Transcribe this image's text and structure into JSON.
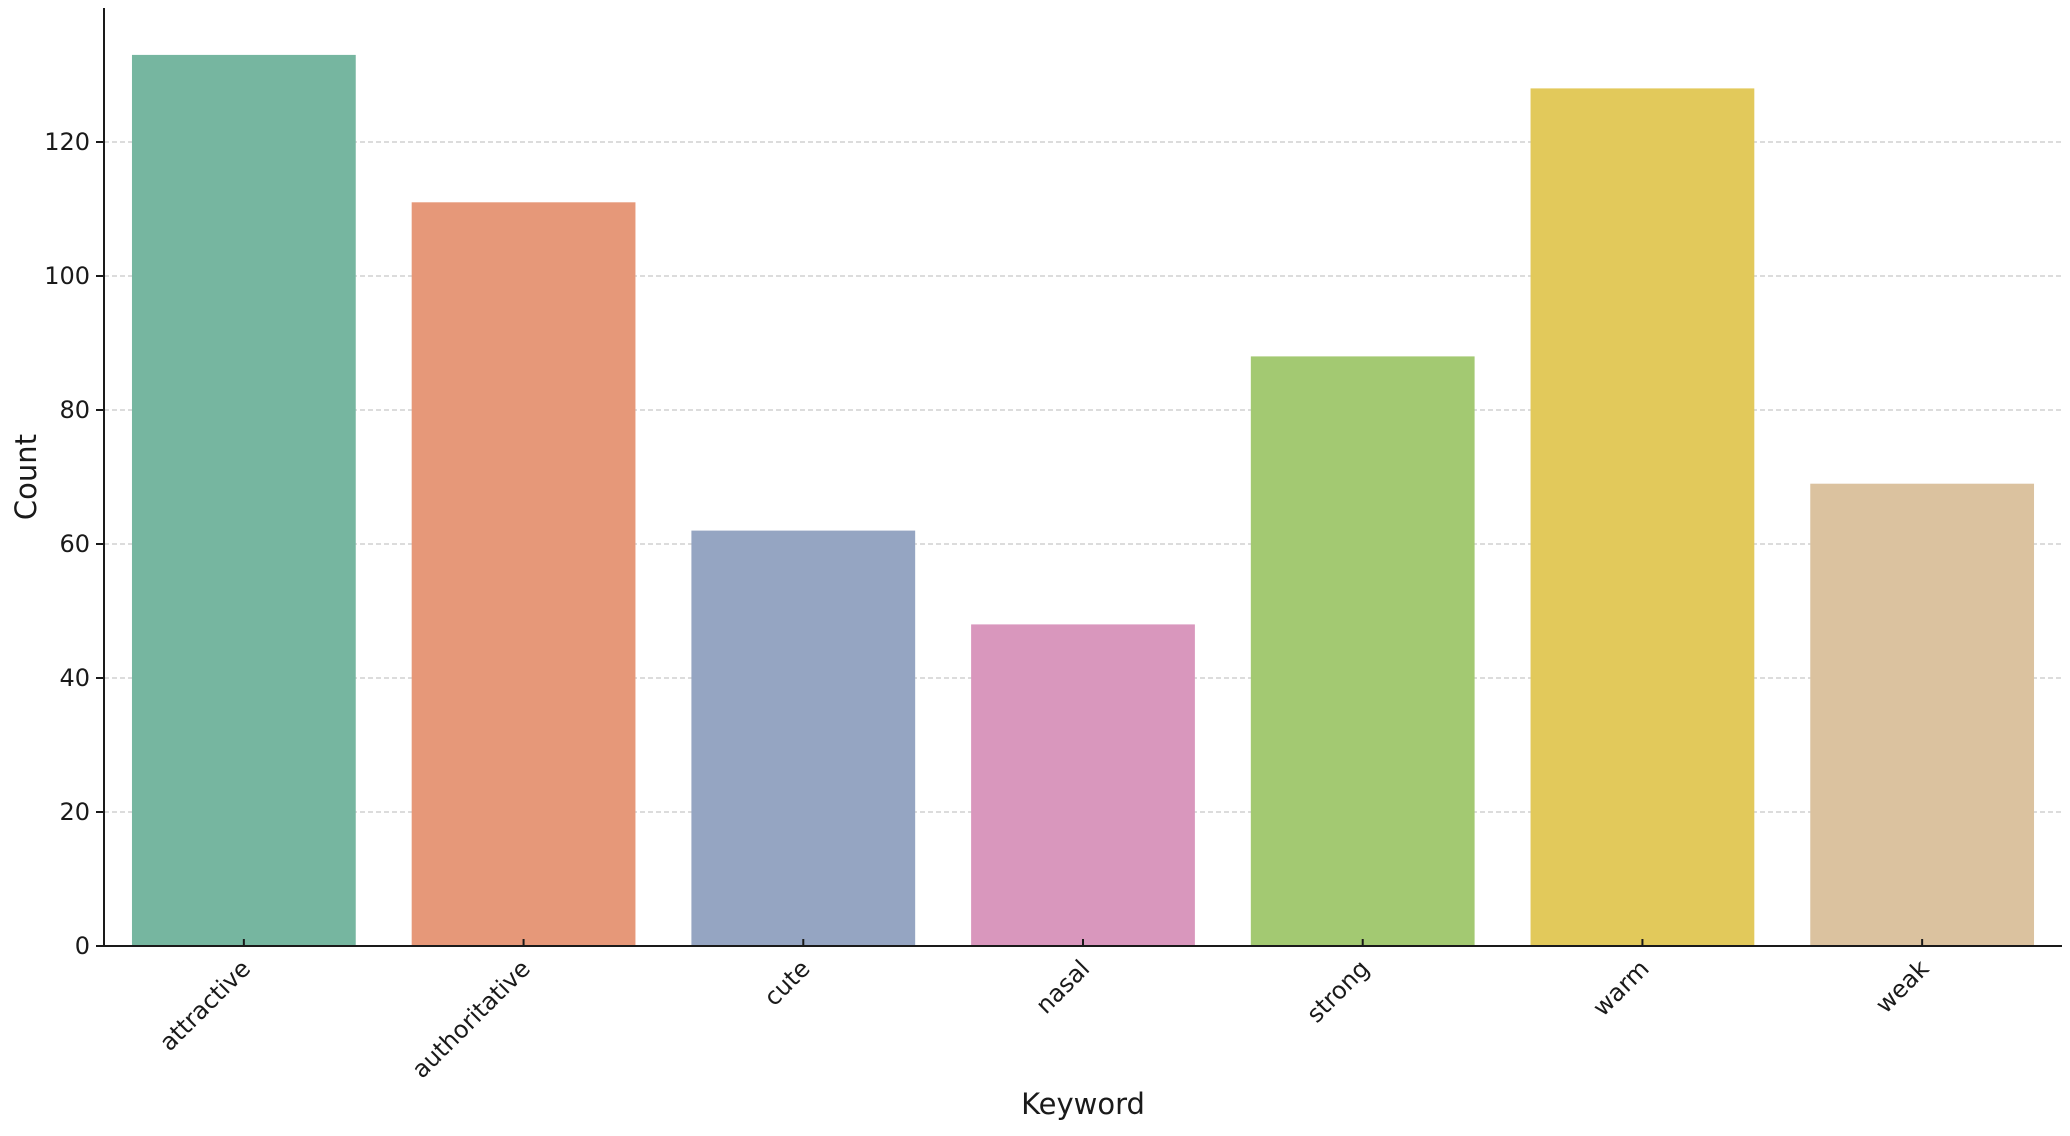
{
  "chart_data": {
    "type": "bar",
    "title": "",
    "xlabel": "Keyword",
    "ylabel": "Count",
    "categories": [
      "attractive",
      "authoritative",
      "cute",
      "nasal",
      "strong",
      "warm",
      "weak"
    ],
    "values": [
      133,
      111,
      62,
      48,
      88,
      128,
      69
    ],
    "colors": [
      "#76b6a0",
      "#e69879",
      "#95a5c2",
      "#d997bd",
      "#a3c972",
      "#e2c95b",
      "#dbc29f"
    ],
    "ylim": [
      0,
      140
    ],
    "yticks": [
      0,
      20,
      40,
      60,
      80,
      100,
      120
    ],
    "grid": true,
    "legend": "none"
  }
}
